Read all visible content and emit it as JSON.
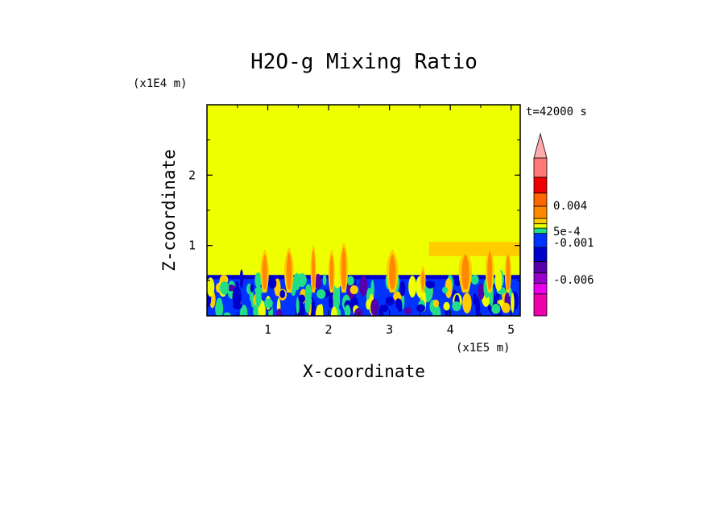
{
  "chart_data": {
    "type": "heatmap",
    "title": "H2O-g Mixing Ratio",
    "xlabel": "X-coordinate",
    "ylabel": "Z-coordinate",
    "x_scale_note": "(x1E5 m)",
    "y_scale_note": "(x1E4 m)",
    "time_label": "t=42000 s",
    "xlim": [
      0,
      5.15
    ],
    "ylim": [
      0,
      3
    ],
    "x_ticks": [
      {
        "value": 1,
        "label": "1"
      },
      {
        "value": 2,
        "label": "2"
      },
      {
        "value": 3,
        "label": "3"
      },
      {
        "value": 4,
        "label": "4"
      },
      {
        "value": 5,
        "label": "5"
      }
    ],
    "y_ticks": [
      {
        "value": 1,
        "label": "1"
      },
      {
        "value": 2,
        "label": "2"
      }
    ],
    "background_color": "#eeff00",
    "boundary_layer_top": 0.58,
    "plumes": [
      {
        "x": 0.95,
        "top": 0.95,
        "w": 0.18
      },
      {
        "x": 1.35,
        "top": 0.98,
        "w": 0.2
      },
      {
        "x": 1.75,
        "top": 1.02,
        "w": 0.12
      },
      {
        "x": 2.05,
        "top": 0.95,
        "w": 0.14
      },
      {
        "x": 2.25,
        "top": 1.05,
        "w": 0.18
      },
      {
        "x": 3.05,
        "top": 0.95,
        "w": 0.25
      },
      {
        "x": 3.55,
        "top": 0.72,
        "w": 0.12
      },
      {
        "x": 4.25,
        "top": 0.95,
        "w": 0.28
      },
      {
        "x": 4.65,
        "top": 1.0,
        "w": 0.18
      },
      {
        "x": 4.95,
        "top": 0.95,
        "w": 0.14
      }
    ],
    "upper_layer": {
      "x0": 3.65,
      "x1": 5.15,
      "bottom": 0.85,
      "top": 1.05
    },
    "colorbar": {
      "levels": [
        {
          "color": "#ee00aa"
        },
        {
          "color": "#ee00ee"
        },
        {
          "color": "#9900cc"
        },
        {
          "color": "#5500aa"
        },
        {
          "color": "#0000cc"
        },
        {
          "color": "#0033ff"
        },
        {
          "color": "#22dd88"
        },
        {
          "color": "#eeff00"
        },
        {
          "color": "#ffcc00"
        },
        {
          "color": "#ff8800"
        },
        {
          "color": "#ff6600"
        },
        {
          "color": "#ee0000"
        },
        {
          "color": "#ff7777"
        },
        {
          "color": "#ffaaaa"
        }
      ],
      "labels": [
        {
          "text": "0.004",
          "at": 0.7
        },
        {
          "text": "5e-4",
          "at": 0.535
        },
        {
          "text": "-0.001",
          "at": 0.465
        },
        {
          "text": "-0.006",
          "at": 0.23
        }
      ]
    }
  }
}
